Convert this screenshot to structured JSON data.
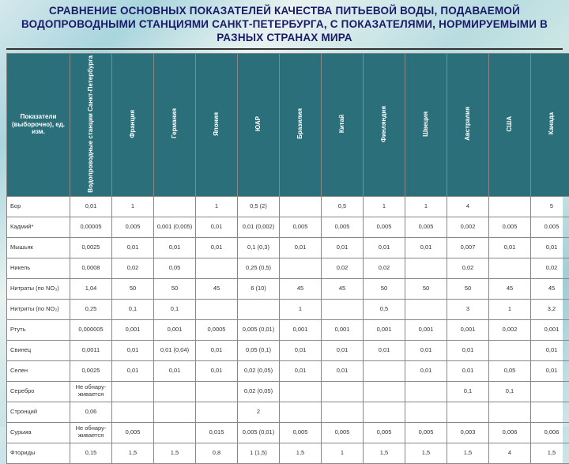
{
  "title": "СРАВНЕНИЕ ОСНОВНЫХ ПОКАЗАТЕЛЕЙ КАЧЕСТВА ПИТЬЕВОЙ ВОДЫ, ПОДАВАЕМОЙ ВОДОПРОВОДНЫМИ СТАНЦИЯМИ САНКТ-ПЕТЕРБУРГА, С ПОКАЗАТЕЛЯМИ, НОРМИРУЕМЫМИ В РАЗНЫХ СТРАНАХ МИРА",
  "table": {
    "header_bg": "#2a6f7a",
    "header_fg": "#ffffff",
    "border_color": "#888888",
    "cell_bg": "#ffffff",
    "columns": [
      "Показатели (выборочно), ед. изм.",
      "Водопроводные станции Санкт-Петербурга",
      "Франция",
      "Германия",
      "Япония",
      "ЮАР",
      "Бразилия",
      "Китай",
      "Финляндия",
      "Швеция",
      "Австралия",
      "США",
      "Канада"
    ],
    "rows": [
      {
        "label": "Бор",
        "cells": [
          "0,01",
          "1",
          "",
          "1",
          "0,5 (2)",
          "",
          "0,5",
          "1",
          "1",
          "4",
          "",
          "5"
        ]
      },
      {
        "label": "Кадмий*",
        "cells": [
          "0,00005",
          "0,005",
          "0,001 (0,005)",
          "0,01",
          "0,01 (0,002)",
          "0,005",
          "0,005",
          "0,005",
          "0,005",
          "0,002",
          "0,005",
          "0,005"
        ]
      },
      {
        "label": "Мышьяк",
        "cells": [
          "0,0025",
          "0,01",
          "0,01",
          "0,01",
          "0,1 (0,3)",
          "0,01",
          "0,01",
          "0,01",
          "0,01",
          "0,007",
          "0,01",
          "0,01"
        ]
      },
      {
        "label": "Никель",
        "cells": [
          "0,0008",
          "0,02",
          "0,05",
          "",
          "0,25 (0,5)",
          "",
          "0,02",
          "0,02",
          "",
          "0,02",
          "",
          "0,02"
        ]
      },
      {
        "label": "Нитраты (по NO₃)",
        "cells": [
          "1,04",
          "50",
          "50",
          "45",
          "6 (10)",
          "45",
          "45",
          "50",
          "50",
          "50",
          "45",
          "45"
        ]
      },
      {
        "label": "Нитриты (по NO₂)",
        "cells": [
          "0,25",
          "0,1",
          "0,1",
          "",
          "",
          "1",
          "",
          "0,5",
          "",
          "3",
          "1",
          "3,2"
        ]
      },
      {
        "label": "Ртуть",
        "cells": [
          "0,000005",
          "0,001",
          "0,001",
          "0,0005",
          "0,005 (0,01)",
          "0,001",
          "0,001",
          "0,001",
          "0,001",
          "0,001",
          "0,002",
          "0,001"
        ]
      },
      {
        "label": "Свинец",
        "cells": [
          "0,0011",
          "0,01",
          "0,01 (0,04)",
          "0,01",
          "0,05 (0,1)",
          "0,01",
          "0,01",
          "0,01",
          "0,01",
          "0,01",
          "",
          "0,01"
        ]
      },
      {
        "label": "Селен",
        "cells": [
          "0,0025",
          "0,01",
          "0,01",
          "0,01",
          "0,02 (0,05)",
          "0,01",
          "0,01",
          "",
          "0,01",
          "0,01",
          "0,05",
          "0,01"
        ]
      },
      {
        "label": "Серебро",
        "cells": [
          "Не обнару-\nживается",
          "",
          "",
          "",
          "0,02 (0,05)",
          "",
          "",
          "",
          "",
          "0,1",
          "0,1",
          ""
        ]
      },
      {
        "label": "Стронций",
        "cells": [
          "0,06",
          "",
          "",
          "",
          "2",
          "",
          "",
          "",
          "",
          "",
          "",
          ""
        ]
      },
      {
        "label": "Сурьма",
        "cells": [
          "Не обнару-\nживается",
          "0,005",
          "",
          "0,015",
          "0,005 (0,01)",
          "0,005",
          "0,005",
          "0,005",
          "0,005",
          "0,003",
          "0,006",
          "0,006"
        ]
      },
      {
        "label": "Фториды",
        "cells": [
          "0,15",
          "1,5",
          "1,5",
          "0,8",
          "1 (1,5)",
          "1,5",
          "1",
          "1,5",
          "1,5",
          "1,5",
          "4",
          "1,5"
        ]
      }
    ]
  }
}
